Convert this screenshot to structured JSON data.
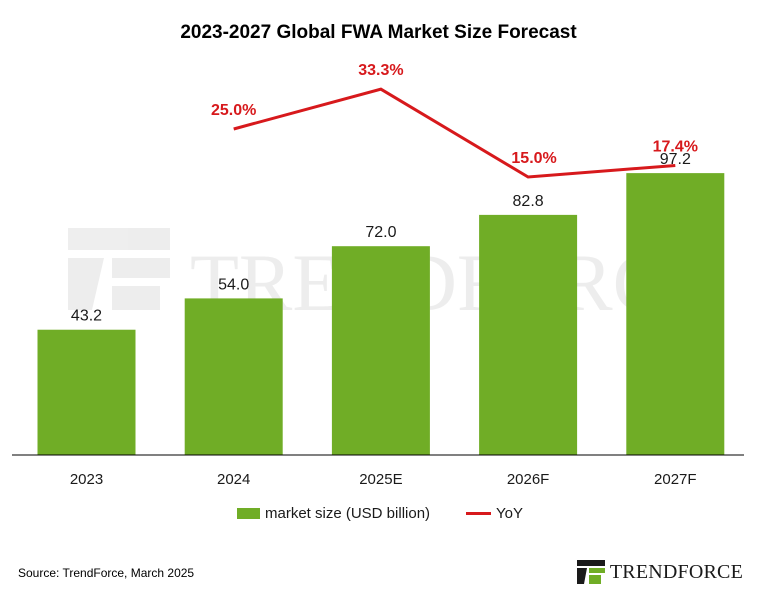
{
  "chart_data": {
    "type": "bar",
    "title": "2023-2027 Global FWA Market Size Forecast",
    "categories": [
      "2023",
      "2024",
      "2025E",
      "2026F",
      "2027F"
    ],
    "series": [
      {
        "name": "market size (USD billion)",
        "kind": "bar",
        "color": "#70AD26",
        "values": [
          43.2,
          54.0,
          72.0,
          82.8,
          97.2
        ],
        "labels": [
          "43.2",
          "54.0",
          "72.0",
          "82.8",
          "97.2"
        ]
      },
      {
        "name": "YoY",
        "kind": "line",
        "color": "#D7191C",
        "values": [
          null,
          25.0,
          33.3,
          15.0,
          17.4
        ],
        "labels": [
          "",
          "25.0%",
          "33.3%",
          "15.0%",
          "17.4%"
        ]
      }
    ],
    "bar_ylim": [
      0,
      100
    ],
    "line_ylim": [
      -20,
      40
    ],
    "legend": [
      "market size (USD billion)",
      "YoY"
    ],
    "legend_position": "bottom"
  },
  "watermark_text": "TRENDFORCE",
  "source": "Source: TrendForce, March 2025",
  "logo_text": "TRENDFORCE",
  "colors": {
    "bar": "#70AD26",
    "line": "#D7191C",
    "axis": "#000000",
    "label": "#1a1a1a"
  }
}
